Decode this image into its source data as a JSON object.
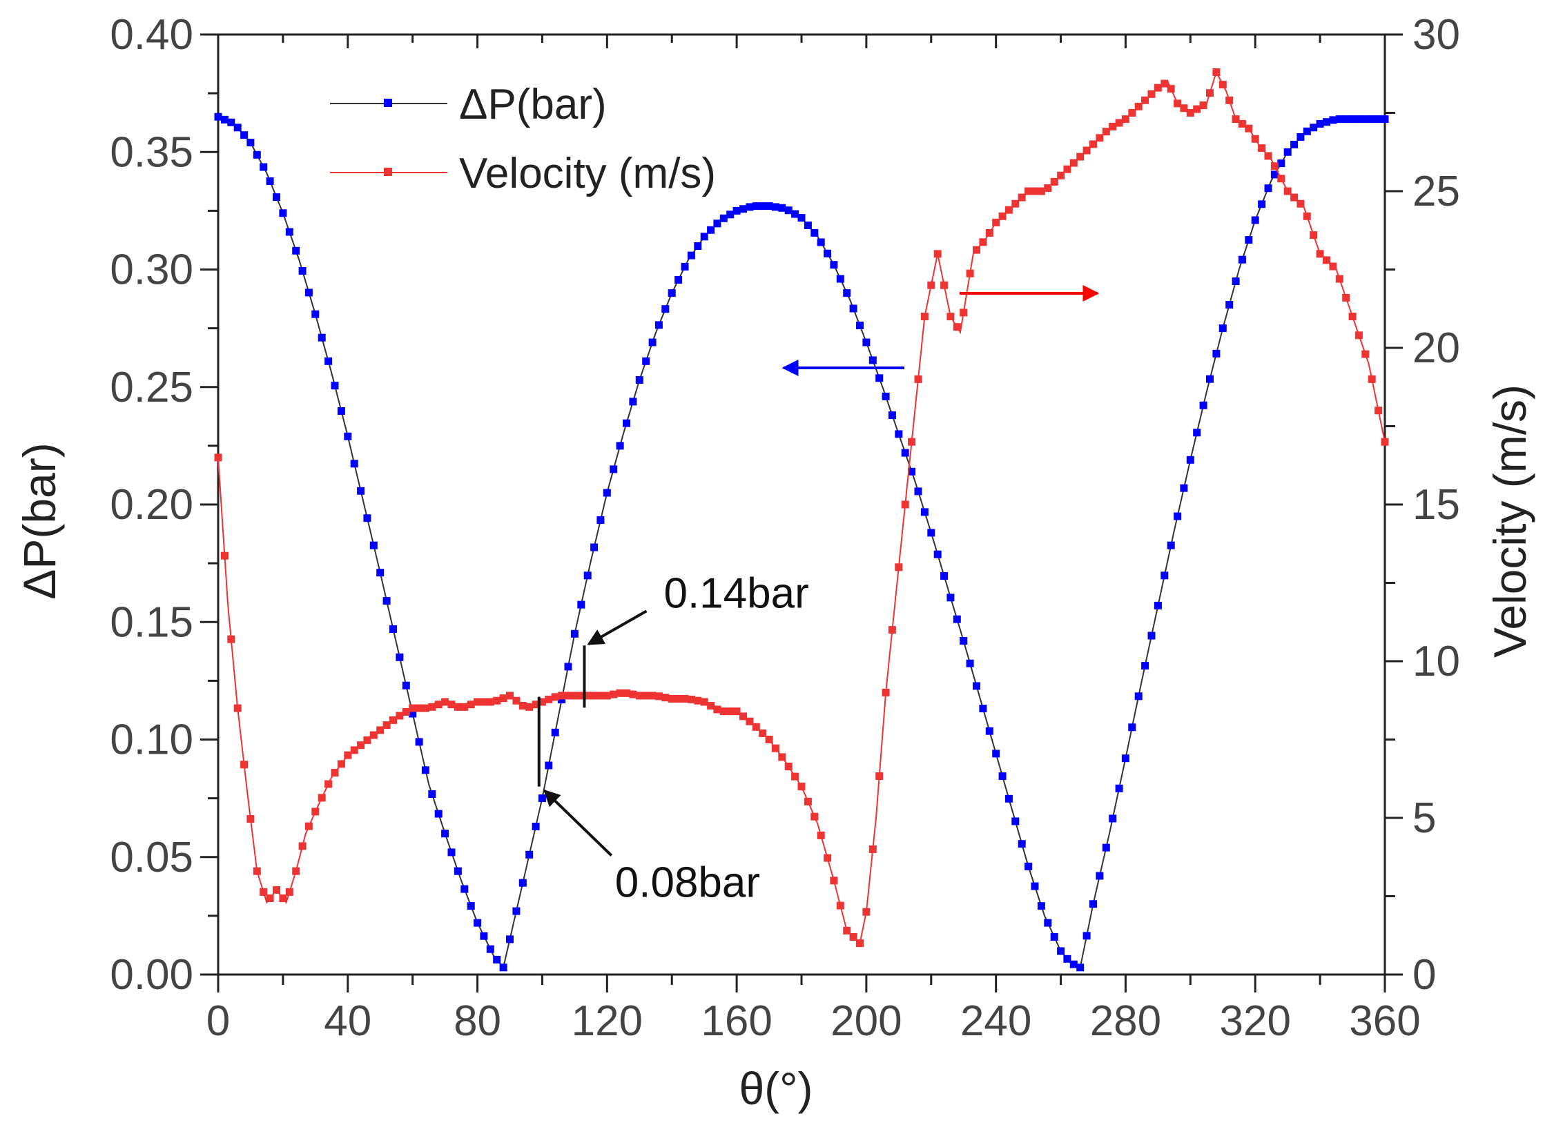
{
  "chart_data": {
    "type": "line",
    "title": "",
    "xlabel": "θ(°)",
    "ylabel_left": "ΔP(bar)",
    "ylabel_right": "Velocity (m/s)",
    "xlim": [
      0,
      360
    ],
    "ylim_left": [
      0,
      0.4
    ],
    "ylim_right": [
      0,
      30
    ],
    "x_ticks": [
      0,
      40,
      80,
      120,
      160,
      200,
      240,
      280,
      320,
      360
    ],
    "x_tick_labels": [
      "0",
      "40",
      "80",
      "120",
      "160",
      "200",
      "240",
      "280",
      "320",
      "360"
    ],
    "y_left_ticks": [
      0,
      0.05,
      0.1,
      0.15,
      0.2,
      0.25,
      0.3,
      0.35,
      0.4
    ],
    "y_left_tick_labels": [
      "0.00",
      "0.05",
      "0.10",
      "0.15",
      "0.20",
      "0.25",
      "0.30",
      "0.35",
      "0.40"
    ],
    "y_right_ticks": [
      0,
      5,
      10,
      15,
      20,
      25,
      30
    ],
    "y_right_tick_labels": [
      "0",
      "5",
      "10",
      "15",
      "20",
      "25",
      "30"
    ],
    "grid": false,
    "legend_position": "top-left",
    "series": [
      {
        "name": "ΔP(bar)",
        "axis": "left",
        "color": "#0000ff",
        "line_color": "#333333",
        "x": [
          0,
          5,
          10,
          15,
          20,
          25,
          30,
          35,
          40,
          45,
          50,
          55,
          60,
          65,
          70,
          75,
          80,
          85,
          88,
          90,
          95,
          100,
          105,
          110,
          115,
          120,
          125,
          130,
          135,
          140,
          145,
          150,
          155,
          160,
          165,
          170,
          175,
          180,
          185,
          190,
          195,
          200,
          205,
          210,
          215,
          220,
          225,
          230,
          235,
          240,
          245,
          250,
          255,
          260,
          263,
          266,
          270,
          275,
          280,
          285,
          290,
          295,
          300,
          305,
          310,
          315,
          320,
          325,
          330,
          335,
          340,
          345,
          350,
          355,
          360
        ],
        "values": [
          0.365,
          0.362,
          0.354,
          0.341,
          0.324,
          0.304,
          0.281,
          0.256,
          0.229,
          0.2,
          0.171,
          0.141,
          0.111,
          0.081,
          0.06,
          0.04,
          0.022,
          0.008,
          0.003,
          0.015,
          0.045,
          0.075,
          0.11,
          0.145,
          0.176,
          0.205,
          0.23,
          0.253,
          0.273,
          0.29,
          0.304,
          0.314,
          0.321,
          0.325,
          0.327,
          0.327,
          0.326,
          0.322,
          0.314,
          0.302,
          0.287,
          0.269,
          0.25,
          0.23,
          0.21,
          0.188,
          0.165,
          0.142,
          0.118,
          0.094,
          0.07,
          0.046,
          0.025,
          0.01,
          0.005,
          0.003,
          0.03,
          0.06,
          0.092,
          0.125,
          0.157,
          0.189,
          0.219,
          0.248,
          0.275,
          0.3,
          0.321,
          0.338,
          0.35,
          0.358,
          0.362,
          0.364,
          0.364,
          0.364,
          0.364
        ]
      },
      {
        "name": "Velocity (m/s)",
        "axis": "right",
        "color": "#ee3333",
        "line_color": "#ee3333",
        "x": [
          0,
          3,
          6,
          9,
          12,
          15,
          18,
          21,
          24,
          27,
          30,
          35,
          40,
          45,
          50,
          55,
          60,
          65,
          70,
          75,
          80,
          85,
          90,
          95,
          100,
          105,
          110,
          115,
          120,
          125,
          130,
          135,
          140,
          145,
          150,
          155,
          160,
          165,
          170,
          175,
          180,
          185,
          190,
          194,
          198,
          200,
          203,
          206,
          210,
          214,
          218,
          222,
          226,
          229,
          233,
          237,
          240,
          245,
          250,
          255,
          260,
          265,
          270,
          275,
          280,
          285,
          290,
          293,
          296,
          300,
          305,
          308,
          311,
          314,
          318,
          321,
          325,
          330,
          335,
          340,
          345,
          350,
          355,
          360
        ],
        "values": [
          16.5,
          11.8,
          8.5,
          5.8,
          3.3,
          2.3,
          2.7,
          2.3,
          3.3,
          4.5,
          5.2,
          6.3,
          7.0,
          7.4,
          7.8,
          8.2,
          8.5,
          8.5,
          8.7,
          8.5,
          8.7,
          8.7,
          8.9,
          8.5,
          8.7,
          8.9,
          8.9,
          8.9,
          8.9,
          9.0,
          8.9,
          8.9,
          8.8,
          8.8,
          8.7,
          8.4,
          8.4,
          8.0,
          7.5,
          6.8,
          6.0,
          4.8,
          3.0,
          1.4,
          1.0,
          2.0,
          5.0,
          9.0,
          13.0,
          17.0,
          21.0,
          23.0,
          21.0,
          20.5,
          23.0,
          23.5,
          24.0,
          24.5,
          25.0,
          25.0,
          25.5,
          26.0,
          26.5,
          27.0,
          27.3,
          27.8,
          28.3,
          28.5,
          27.8,
          27.5,
          27.8,
          28.8,
          28.2,
          27.3,
          27.0,
          26.5,
          26.0,
          25.0,
          24.5,
          23.0,
          22.5,
          21.0,
          19.5,
          17.0
        ]
      }
    ],
    "annotations": [
      {
        "text": "0.14bar",
        "x_value": 113,
        "y_value": 0.14
      },
      {
        "text": "0.08bar",
        "x_value": 99,
        "y_value": 0.08
      }
    ],
    "direction_arrows": [
      {
        "axis": "left",
        "color": "#0000ff",
        "direction": "left"
      },
      {
        "axis": "right",
        "color": "#ff0000",
        "direction": "right"
      }
    ]
  }
}
